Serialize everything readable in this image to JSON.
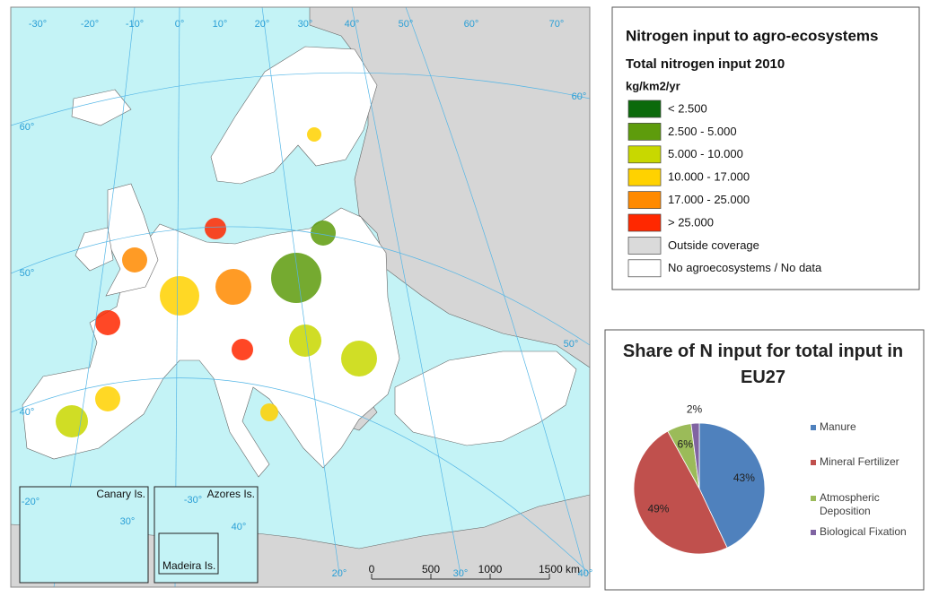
{
  "map": {
    "graticule_labels": [
      "-30°",
      "-20°",
      "-10°",
      "0°",
      "10°",
      "20°",
      "30°",
      "40°",
      "50°",
      "60°",
      "70°",
      "60°",
      "50°",
      "40°",
      "60°",
      "50°",
      "20°",
      "30°",
      "40°"
    ],
    "insets": [
      "Canary Is.",
      "Azores Is.",
      "Madeira Is."
    ],
    "inset_graticule_labels": [
      "-20°",
      "30°",
      "-30°",
      "40°"
    ],
    "scale_bar_labels": [
      "0",
      "500",
      "1000",
      "1500 km"
    ]
  },
  "legend": {
    "title": "Nitrogen input to agro-ecosystems",
    "subtitle": "Total nitrogen input 2010",
    "unit": "kg/km2/yr",
    "classes": [
      {
        "label": "< 2.500",
        "color": "#0b6a0b"
      },
      {
        "label": "2.500 - 5.000",
        "color": "#5e9c0c"
      },
      {
        "label": "5.000 - 10.000",
        "color": "#c8d800"
      },
      {
        "label": "10.000 - 17.000",
        "color": "#ffd200"
      },
      {
        "label": "17.000 - 25.000",
        "color": "#ff8a00"
      },
      {
        "label": "> 25.000",
        "color": "#ff2800"
      },
      {
        "label": "Outside coverage",
        "color": "#dadada"
      },
      {
        "label": "No agroecosystems / No data",
        "color": "#ffffff"
      }
    ]
  },
  "chart_data": {
    "type": "pie",
    "title": "Share of N input for total input in EU27",
    "categories": [
      "Manure",
      "Mineral Fertilizer",
      "Atmospheric Deposition",
      "Biological Fixation"
    ],
    "values": [
      43,
      49,
      6,
      2
    ],
    "value_labels": [
      "43%",
      "49%",
      "6%",
      "2%"
    ],
    "colors": [
      "#4f81bd",
      "#c0504d",
      "#9bbb59",
      "#8064a2"
    ]
  }
}
